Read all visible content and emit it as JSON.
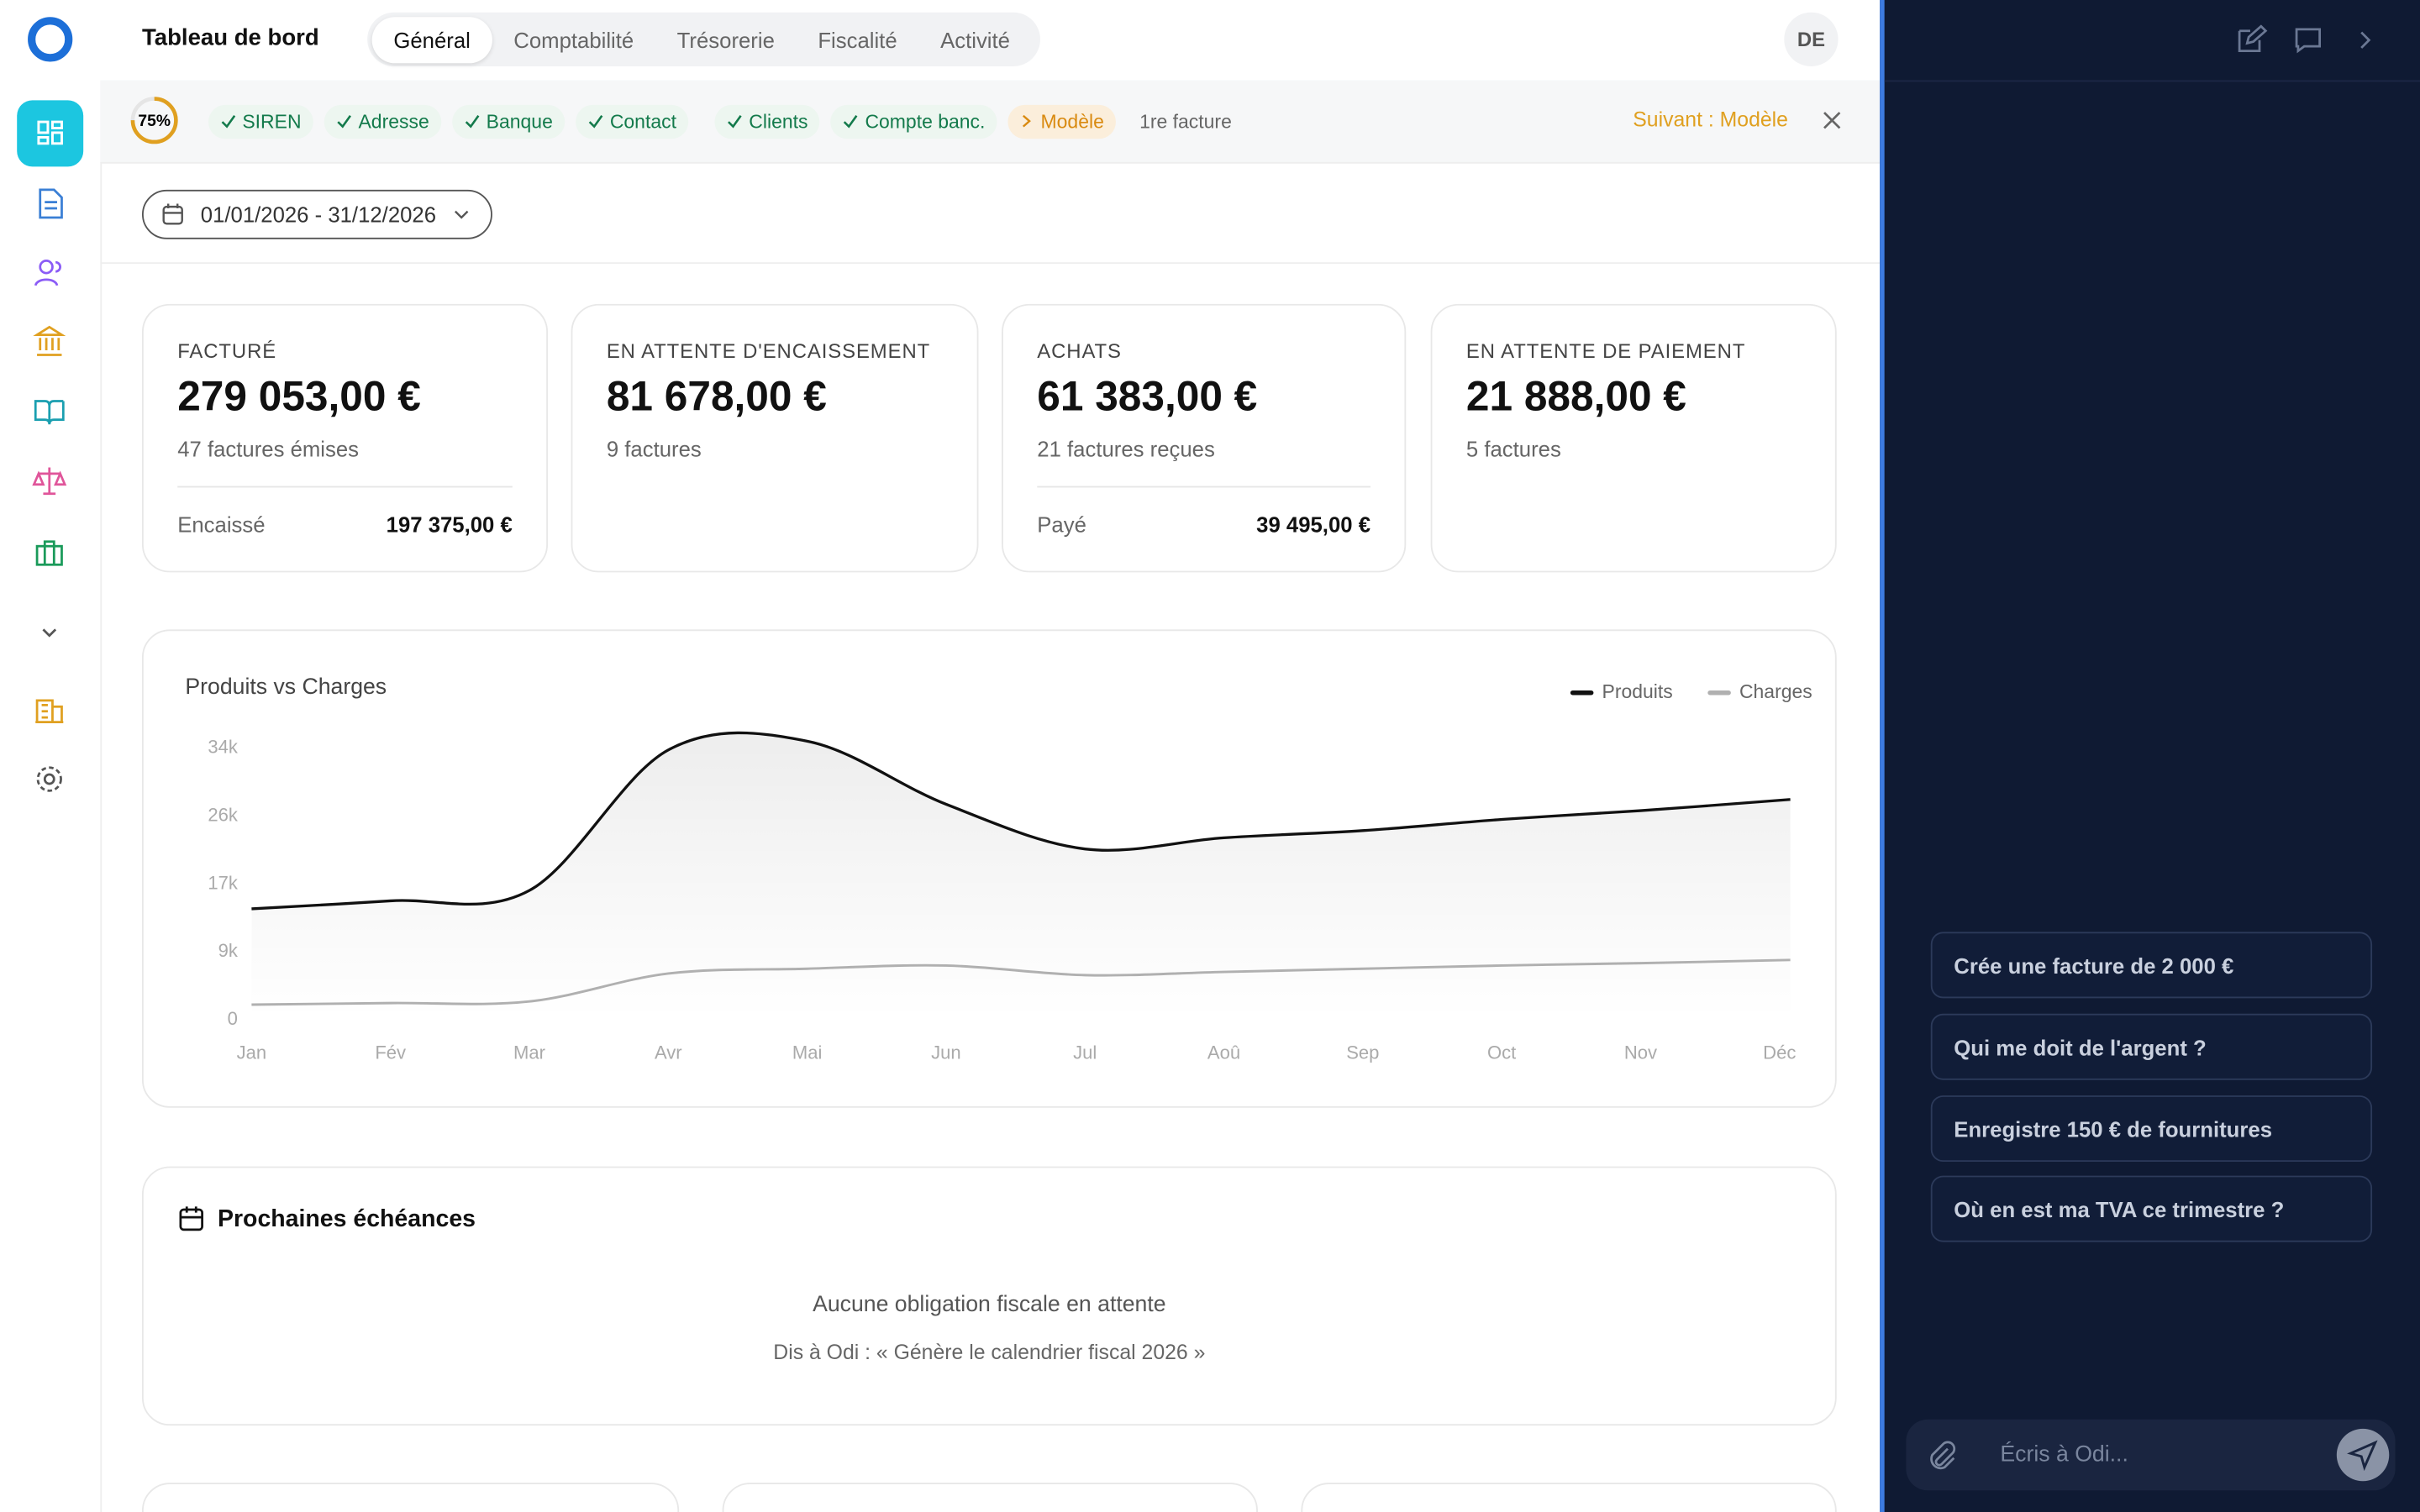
{
  "app": {
    "title": "Tableau de bord",
    "tabs": [
      "Général",
      "Comptabilité",
      "Trésorerie",
      "Fiscalité",
      "Activité"
    ],
    "user_initials": "DE"
  },
  "onboarding": {
    "progress": {
      "value": 75,
      "label": "75%"
    },
    "completed_steps": [
      "SIREN",
      "Adresse",
      "Banque",
      "Contact",
      "Clients",
      "Compte banc."
    ],
    "current_step": "Modèle",
    "remaining_step": "1re facture",
    "next": "Suivant : Modèle"
  },
  "date_range": "01/01/2026 - 31/12/2026",
  "kpis": [
    {
      "label": "FACTURÉ",
      "value": "279 053,00 €",
      "detail": "47 factures émises",
      "sub_label": "Encaissé",
      "sub_value": "197 375,00 €"
    },
    {
      "label": "EN ATTENTE D'ENCAISSEMENT",
      "value": "81 678,00 €",
      "detail": "9 factures"
    },
    {
      "label": "ACHATS",
      "value": "61 383,00 €",
      "detail": "21 factures reçues",
      "sub_label": "Payé",
      "sub_value": "39 495,00 €"
    },
    {
      "label": "EN ATTENTE DE PAIEMENT",
      "value": "21 888,00 €",
      "detail": "5 factures"
    }
  ],
  "chart_data": {
    "type": "line",
    "title": "Produits vs Charges",
    "categories": [
      "Jan",
      "Fév",
      "Mar",
      "Avr",
      "Mai",
      "Jun",
      "Jul",
      "Aoû",
      "Sep",
      "Oct",
      "Nov",
      "Déc"
    ],
    "series": [
      {
        "name": "Produits",
        "color": "#111111",
        "values": [
          13900,
          14900,
          16200,
          33800,
          34900,
          27000,
          21400,
          22800,
          23700,
          25100,
          26200,
          27600
        ]
      },
      {
        "name": "Charges",
        "color": "#b0b0b0",
        "values": [
          1900,
          2100,
          2300,
          5800,
          6400,
          6800,
          5600,
          6000,
          6400,
          6800,
          7100,
          7500
        ]
      }
    ],
    "ylim": [
      0,
      36000
    ],
    "yticks": [
      0,
      {
        "value": 8500,
        "label": "9k"
      },
      {
        "value": 17000,
        "label": "17k"
      },
      {
        "value": 25500,
        "label": "26k"
      },
      {
        "value": 34000,
        "label": "34k"
      }
    ],
    "legend": "top-right"
  },
  "deadlines": {
    "title": "Prochaines échéances",
    "empty": "Aucune obligation fiscale en attente",
    "hint": "Dis à Odi : « Génère le calendrier fiscal 2026 »"
  },
  "assistant": {
    "suggestions": [
      "Crée une facture de 2 000 €",
      "Qui me doit de l'argent ?",
      "Enregistre 150 € de fournitures",
      "Où en est ma TVA ce trimestre ?"
    ],
    "input_placeholder": "Écris à Odi..."
  }
}
